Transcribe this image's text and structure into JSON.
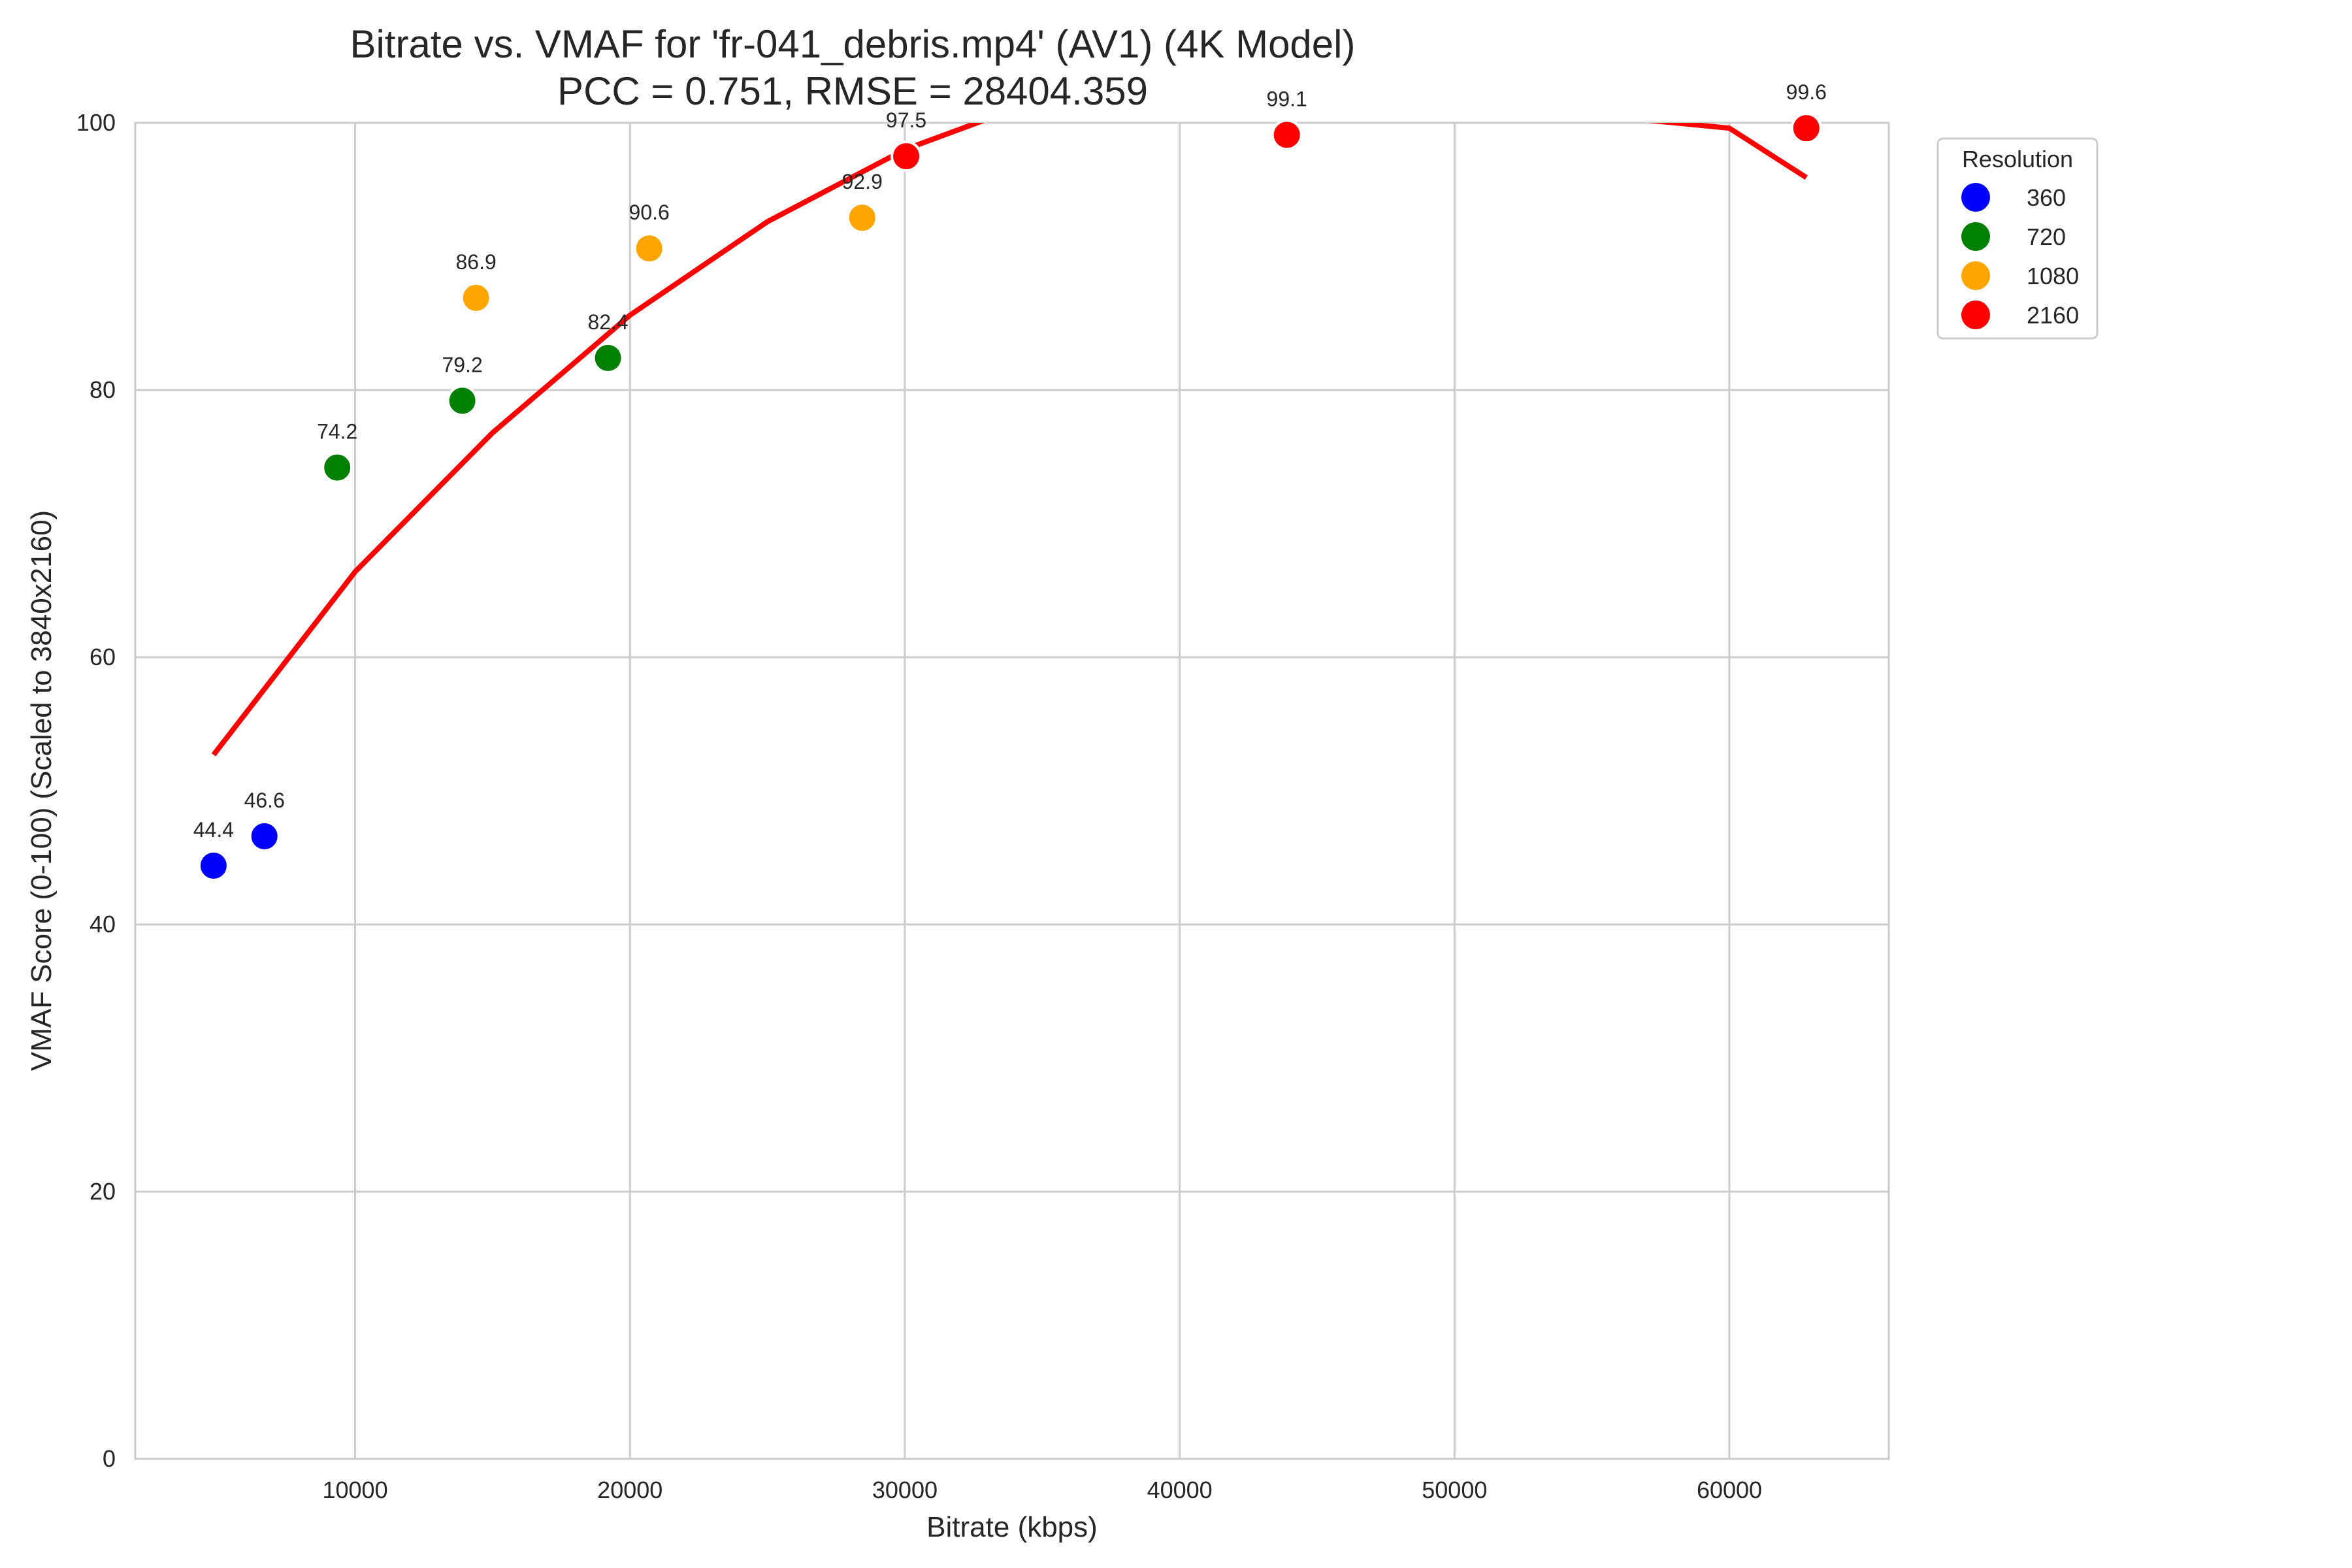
{
  "chart_data": {
    "type": "scatter",
    "title": "Bitrate vs. VMAF for 'fr-041_debris.mp4' (AV1) (4K Model)",
    "subtitle": "PCC = 0.751, RMSE = 28404.359",
    "xlabel": "Bitrate (kbps)",
    "ylabel": "VMAF Score (0-100) (Scaled to 3840x2160)",
    "xlim": [
      2000,
      65800
    ],
    "ylim": [
      0,
      100
    ],
    "x_ticks": [
      10000,
      20000,
      30000,
      40000,
      50000,
      60000
    ],
    "y_ticks": [
      0,
      20,
      40,
      60,
      80,
      100
    ],
    "grid": true,
    "legend": {
      "title": "Resolution",
      "placement": "outside-top-right"
    },
    "series": [
      {
        "name": "360",
        "color": "#0000ff",
        "points": [
          {
            "x": 4850,
            "y": 44.4,
            "label": "44.4"
          },
          {
            "x": 6700,
            "y": 46.6,
            "label": "46.6"
          }
        ]
      },
      {
        "name": "720",
        "color": "#008000",
        "points": [
          {
            "x": 9350,
            "y": 74.2,
            "label": "74.2"
          },
          {
            "x": 13900,
            "y": 79.2,
            "label": "79.2"
          },
          {
            "x": 19200,
            "y": 82.4,
            "label": "82.4"
          }
        ]
      },
      {
        "name": "1080",
        "color": "#ffa500",
        "points": [
          {
            "x": 14400,
            "y": 86.9,
            "label": "86.9"
          },
          {
            "x": 20700,
            "y": 90.6,
            "label": "90.6"
          },
          {
            "x": 28450,
            "y": 92.9,
            "label": "92.9"
          }
        ]
      },
      {
        "name": "2160",
        "color": "#ff0000",
        "points": [
          {
            "x": 30050,
            "y": 97.5,
            "label": "97.5"
          },
          {
            "x": 43900,
            "y": 99.1,
            "label": "99.1"
          },
          {
            "x": 62800,
            "y": 99.6,
            "label": "99.6"
          }
        ]
      }
    ],
    "fit_line": {
      "color": "#ff0000",
      "points": [
        {
          "x": 4850,
          "y": 52.7
        },
        {
          "x": 10000,
          "y": 66.4
        },
        {
          "x": 15000,
          "y": 76.8
        },
        {
          "x": 20000,
          "y": 85.6
        },
        {
          "x": 25000,
          "y": 92.6
        },
        {
          "x": 30000,
          "y": 98.0
        },
        {
          "x": 35000,
          "y": 101.8
        },
        {
          "x": 40000,
          "y": 103.9
        },
        {
          "x": 45000,
          "y": 104.4
        },
        {
          "x": 50000,
          "y": 103.4
        },
        {
          "x": 55000,
          "y": 100.6
        },
        {
          "x": 60000,
          "y": 99.6
        },
        {
          "x": 62800,
          "y": 95.9
        }
      ]
    }
  }
}
